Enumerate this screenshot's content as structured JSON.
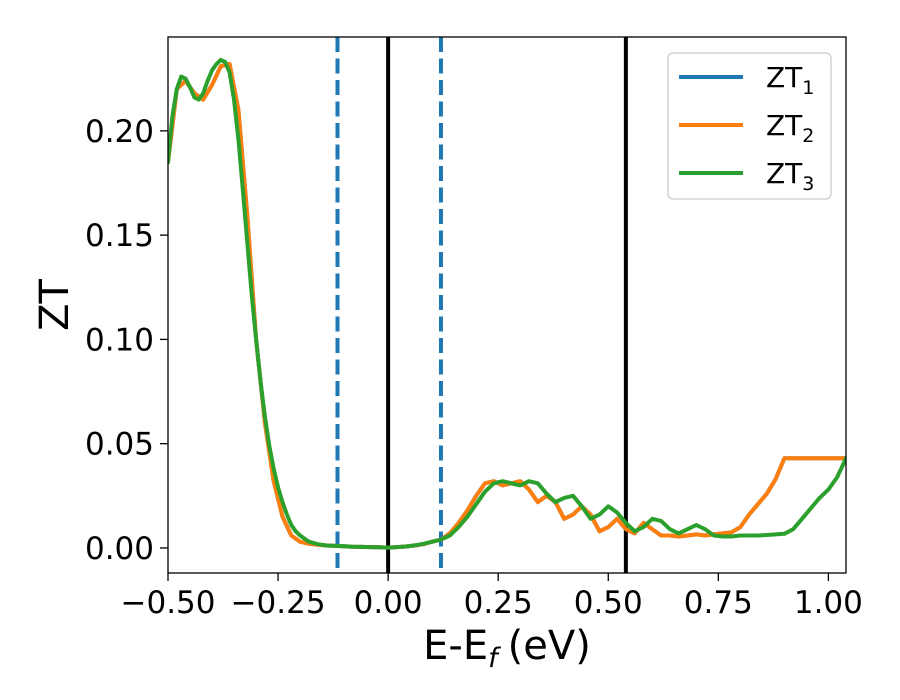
{
  "chart_data": {
    "type": "line",
    "xlabel": "E-E",
    "xlabel_sub": "f",
    "xlabel_unit": "(eV)",
    "ylabel": "ZT",
    "xlim": [
      -0.5,
      1.04
    ],
    "ylim": [
      -0.012,
      0.245
    ],
    "x_ticks": [
      -0.5,
      -0.25,
      0.0,
      0.25,
      0.5,
      0.75,
      1.0
    ],
    "x_tick_labels": [
      "−0.50",
      "−0.25",
      "0.00",
      "0.25",
      "0.50",
      "0.75",
      "1.00"
    ],
    "y_ticks": [
      0.0,
      0.05,
      0.1,
      0.15,
      0.2
    ],
    "y_tick_labels": [
      "0.00",
      "0.05",
      "0.10",
      "0.15",
      "0.20"
    ],
    "grid": false,
    "legend_position": "top-right",
    "vertical_lines": [
      {
        "x": -0.115,
        "style": "dashed",
        "color": "#1f77b4"
      },
      {
        "x": 0.0,
        "style": "solid",
        "color": "#000000"
      },
      {
        "x": 0.12,
        "style": "dashed",
        "color": "#1f77b4"
      },
      {
        "x": 0.54,
        "style": "solid",
        "color": "#000000"
      }
    ],
    "series": [
      {
        "name": "ZT",
        "sub": "1",
        "color": "#1f77b4",
        "x": [
          -0.5,
          -0.48,
          -0.46,
          -0.44,
          -0.42,
          -0.4,
          -0.38,
          -0.36,
          -0.34,
          -0.32,
          -0.3,
          -0.28,
          -0.26,
          -0.24,
          -0.22,
          -0.2,
          -0.18,
          -0.16,
          -0.14,
          -0.12,
          -0.1,
          -0.08,
          -0.06,
          -0.04,
          -0.02,
          0.0,
          0.02,
          0.04,
          0.06,
          0.08,
          0.1,
          0.12,
          0.14,
          0.16,
          0.18,
          0.2,
          0.22,
          0.24,
          0.26,
          0.28,
          0.3,
          0.32,
          0.34,
          0.36,
          0.38,
          0.4,
          0.42,
          0.44,
          0.46,
          0.48,
          0.5,
          0.52,
          0.54,
          0.56,
          0.58,
          0.6,
          0.62,
          0.64,
          0.66,
          0.68,
          0.7,
          0.72,
          0.74,
          0.76,
          0.78,
          0.8,
          0.82,
          0.84,
          0.86,
          0.88,
          0.9,
          0.92,
          0.94,
          0.96,
          0.98,
          1.0,
          1.02,
          1.04
        ],
        "y": [
          0.185,
          0.22,
          0.224,
          0.218,
          0.215,
          0.222,
          0.231,
          0.232,
          0.21,
          0.16,
          0.1,
          0.06,
          0.032,
          0.015,
          0.006,
          0.003,
          0.002,
          0.0015,
          0.0012,
          0.001,
          0.0008,
          0.0006,
          0.0005,
          0.0004,
          0.0003,
          0.0002,
          0.0004,
          0.0007,
          0.0012,
          0.0018,
          0.003,
          0.004,
          0.007,
          0.012,
          0.018,
          0.025,
          0.031,
          0.032,
          0.03,
          0.031,
          0.032,
          0.028,
          0.022,
          0.025,
          0.022,
          0.014,
          0.016,
          0.02,
          0.016,
          0.008,
          0.01,
          0.014,
          0.009,
          0.007,
          0.012,
          0.009,
          0.006,
          0.006,
          0.0055,
          0.006,
          0.0065,
          0.006,
          0.0065,
          0.007,
          0.0075,
          0.01,
          0.016,
          0.021,
          0.026,
          0.033,
          0.043,
          0.043,
          0.043,
          0.043,
          0.043,
          0.043,
          0.043,
          0.043
        ]
      },
      {
        "name": "ZT",
        "sub": "2",
        "color": "#ff7f0e",
        "x": [
          -0.5,
          -0.48,
          -0.46,
          -0.44,
          -0.42,
          -0.4,
          -0.38,
          -0.36,
          -0.34,
          -0.32,
          -0.3,
          -0.28,
          -0.26,
          -0.24,
          -0.22,
          -0.2,
          -0.18,
          -0.16,
          -0.14,
          -0.12,
          -0.1,
          -0.08,
          -0.06,
          -0.04,
          -0.02,
          0.0,
          0.02,
          0.04,
          0.06,
          0.08,
          0.1,
          0.12,
          0.14,
          0.16,
          0.18,
          0.2,
          0.22,
          0.24,
          0.26,
          0.28,
          0.3,
          0.32,
          0.34,
          0.36,
          0.38,
          0.4,
          0.42,
          0.44,
          0.46,
          0.48,
          0.5,
          0.52,
          0.54,
          0.56,
          0.58,
          0.6,
          0.62,
          0.64,
          0.66,
          0.68,
          0.7,
          0.72,
          0.74,
          0.76,
          0.78,
          0.8,
          0.82,
          0.84,
          0.86,
          0.88,
          0.9,
          0.92,
          0.94,
          0.96,
          0.98,
          1.0,
          1.02,
          1.04
        ],
        "y": [
          0.185,
          0.22,
          0.224,
          0.218,
          0.215,
          0.222,
          0.231,
          0.232,
          0.21,
          0.16,
          0.1,
          0.06,
          0.032,
          0.015,
          0.006,
          0.003,
          0.002,
          0.0015,
          0.0012,
          0.001,
          0.0008,
          0.0006,
          0.0005,
          0.0004,
          0.0003,
          0.0002,
          0.0004,
          0.0007,
          0.0012,
          0.0018,
          0.003,
          0.004,
          0.007,
          0.012,
          0.018,
          0.025,
          0.031,
          0.032,
          0.03,
          0.031,
          0.032,
          0.028,
          0.022,
          0.025,
          0.022,
          0.014,
          0.016,
          0.02,
          0.016,
          0.008,
          0.01,
          0.014,
          0.009,
          0.007,
          0.012,
          0.009,
          0.006,
          0.006,
          0.0055,
          0.006,
          0.0065,
          0.006,
          0.0065,
          0.007,
          0.0075,
          0.01,
          0.016,
          0.021,
          0.026,
          0.033,
          0.043,
          0.043,
          0.043,
          0.043,
          0.043,
          0.043,
          0.043,
          0.043
        ]
      },
      {
        "name": "ZT",
        "sub": "3",
        "color": "#2ca02c",
        "x": [
          -0.5,
          -0.49,
          -0.48,
          -0.47,
          -0.46,
          -0.45,
          -0.44,
          -0.43,
          -0.42,
          -0.41,
          -0.4,
          -0.39,
          -0.38,
          -0.37,
          -0.36,
          -0.35,
          -0.34,
          -0.33,
          -0.32,
          -0.31,
          -0.3,
          -0.29,
          -0.28,
          -0.27,
          -0.26,
          -0.25,
          -0.24,
          -0.23,
          -0.22,
          -0.21,
          -0.2,
          -0.18,
          -0.16,
          -0.14,
          -0.12,
          -0.1,
          -0.08,
          -0.06,
          -0.04,
          -0.02,
          0.0,
          0.02,
          0.04,
          0.06,
          0.08,
          0.1,
          0.12,
          0.14,
          0.16,
          0.18,
          0.2,
          0.22,
          0.24,
          0.26,
          0.28,
          0.3,
          0.32,
          0.34,
          0.36,
          0.38,
          0.4,
          0.42,
          0.44,
          0.46,
          0.48,
          0.5,
          0.52,
          0.54,
          0.56,
          0.58,
          0.6,
          0.62,
          0.64,
          0.66,
          0.68,
          0.7,
          0.72,
          0.74,
          0.76,
          0.78,
          0.8,
          0.82,
          0.84,
          0.86,
          0.88,
          0.9,
          0.92,
          0.94,
          0.96,
          0.98,
          1.0,
          1.02,
          1.04
        ],
        "y": [
          0.185,
          0.207,
          0.22,
          0.226,
          0.225,
          0.221,
          0.216,
          0.215,
          0.218,
          0.224,
          0.229,
          0.232,
          0.234,
          0.233,
          0.228,
          0.215,
          0.196,
          0.172,
          0.147,
          0.122,
          0.1,
          0.08,
          0.063,
          0.049,
          0.038,
          0.029,
          0.022,
          0.016,
          0.011,
          0.008,
          0.006,
          0.003,
          0.0018,
          0.0012,
          0.001,
          0.0008,
          0.0006,
          0.0005,
          0.0004,
          0.0003,
          0.0002,
          0.0004,
          0.0007,
          0.0012,
          0.002,
          0.003,
          0.004,
          0.006,
          0.01,
          0.015,
          0.021,
          0.027,
          0.031,
          0.032,
          0.031,
          0.03,
          0.032,
          0.031,
          0.026,
          0.022,
          0.024,
          0.025,
          0.02,
          0.014,
          0.016,
          0.02,
          0.017,
          0.012,
          0.008,
          0.01,
          0.014,
          0.013,
          0.009,
          0.007,
          0.009,
          0.011,
          0.009,
          0.006,
          0.0055,
          0.0055,
          0.006,
          0.006,
          0.006,
          0.0062,
          0.0065,
          0.0068,
          0.009,
          0.014,
          0.019,
          0.024,
          0.028,
          0.034,
          0.043
        ]
      }
    ]
  }
}
